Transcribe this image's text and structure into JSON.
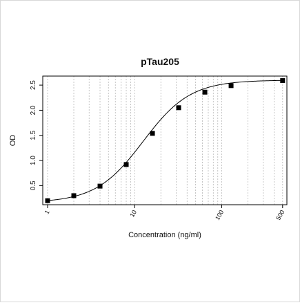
{
  "chart_data": {
    "type": "scatter",
    "title": "pTau205",
    "xlabel": "Concentration (ng/ml)",
    "ylabel": "OD",
    "xscale": "log",
    "xlim": [
      0.88,
      560
    ],
    "ylim": [
      0.12,
      2.68
    ],
    "xticks": [
      {
        "value": 1,
        "label": "1"
      },
      {
        "value": 10,
        "label": "10"
      },
      {
        "value": 100,
        "label": "100"
      },
      {
        "value": 500,
        "label": "500"
      }
    ],
    "yticks": [
      {
        "value": 0.5,
        "label": "0.5"
      },
      {
        "value": 1.0,
        "label": "1.0"
      },
      {
        "value": 1.5,
        "label": "1.5"
      },
      {
        "value": 2.0,
        "label": "2.0"
      },
      {
        "value": 2.5,
        "label": "2.5"
      }
    ],
    "grid": "vertical dotted lines at log decade minor ticks",
    "marker": "filled square",
    "points": [
      {
        "x": 1,
        "y": 0.2
      },
      {
        "x": 2,
        "y": 0.3
      },
      {
        "x": 4,
        "y": 0.49
      },
      {
        "x": 8,
        "y": 0.92
      },
      {
        "x": 16,
        "y": 1.54
      },
      {
        "x": 32,
        "y": 2.05
      },
      {
        "x": 64,
        "y": 2.36
      },
      {
        "x": 128,
        "y": 2.49
      },
      {
        "x": 500,
        "y": 2.59
      }
    ],
    "fit": {
      "type": "4PL sigmoid"
    }
  }
}
